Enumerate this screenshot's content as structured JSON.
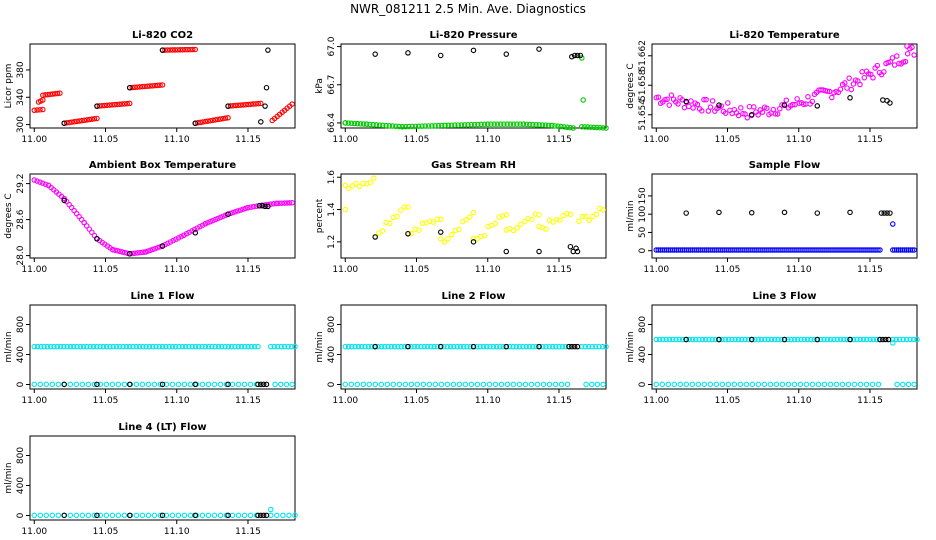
{
  "page": {
    "title": "NWR_081211  2.5 Min. Ave. Diagnostics"
  },
  "colors": {
    "red": "#ff0000",
    "green": "#00cc00",
    "magenta": "#ff00ff",
    "yellow": "#ffff00",
    "blue": "#0000ff",
    "cyan": "#00e5ee",
    "black": "#000000"
  },
  "chart_data": [
    {
      "type": "scatter",
      "title": "Li-820 CO2",
      "ylabel": "Licor ppm",
      "xlim": [
        10.997,
        11.183
      ],
      "ylim": [
        295,
        418
      ],
      "xticks": [
        "11.00",
        "11.05",
        "11.10",
        "11.15"
      ],
      "yticks": [
        "300",
        "340",
        "380"
      ],
      "series": [
        {
          "color": "#ff0000",
          "segments": [
            {
              "x0": 11.0,
              "x1": 11.006,
              "y0": 321,
              "y1": 322
            },
            {
              "x0": 11.003,
              "x1": 11.006,
              "y0": 333,
              "y1": 336
            },
            {
              "x0": 11.006,
              "x1": 11.018,
              "y0": 343,
              "y1": 346
            },
            {
              "x0": 11.021,
              "x1": 11.044,
              "y0": 302,
              "y1": 309
            },
            {
              "x0": 11.044,
              "x1": 11.067,
              "y0": 327,
              "y1": 331
            },
            {
              "x0": 11.067,
              "x1": 11.09,
              "y0": 354,
              "y1": 358
            },
            {
              "x0": 11.09,
              "x1": 11.113,
              "y0": 409,
              "y1": 410
            },
            {
              "x0": 11.113,
              "x1": 11.136,
              "y0": 302,
              "y1": 310
            },
            {
              "x0": 11.136,
              "x1": 11.159,
              "y0": 327,
              "y1": 331
            },
            {
              "x0": 11.167,
              "x1": 11.181,
              "y0": 306,
              "y1": 330
            }
          ]
        },
        {
          "color": "#000000",
          "points": [
            [
              11.021,
              302
            ],
            [
              11.044,
              327
            ],
            [
              11.067,
              354
            ],
            [
              11.09,
              409
            ],
            [
              11.113,
              302
            ],
            [
              11.136,
              327
            ],
            [
              11.159,
              304
            ],
            [
              11.162,
              327
            ],
            [
              11.163,
              354
            ],
            [
              11.164,
              409
            ]
          ]
        }
      ]
    },
    {
      "type": "scatter",
      "title": "Li-820 Pressure",
      "ylabel": "kPa",
      "xlim": [
        10.997,
        11.183
      ],
      "ylim": [
        66.36,
        67.02
      ],
      "xticks": [
        "11.00",
        "11.05",
        "11.10",
        "11.15"
      ],
      "yticks": [
        "66.4",
        "66.7",
        "67.0"
      ],
      "series": [
        {
          "color": "#00cc00",
          "line": [
            [
              11.0,
              66.4
            ],
            [
              11.015,
              66.39
            ],
            [
              11.04,
              66.37
            ],
            [
              11.07,
              66.38
            ],
            [
              11.1,
              66.39
            ],
            [
              11.125,
              66.39
            ],
            [
              11.145,
              66.38
            ],
            [
              11.16,
              66.36
            ]
          ],
          "line2": [
            [
              11.166,
              66.37
            ],
            [
              11.183,
              66.36
            ]
          ],
          "points": [
            [
              11.0,
              66.4
            ],
            [
              11.167,
              66.58
            ],
            [
              11.166,
              66.91
            ]
          ]
        },
        {
          "color": "#000000",
          "points": [
            [
              11.021,
              66.94
            ],
            [
              11.044,
              66.95
            ],
            [
              11.067,
              66.93
            ],
            [
              11.09,
              66.97
            ],
            [
              11.113,
              66.94
            ],
            [
              11.136,
              66.98
            ],
            [
              11.159,
              66.92
            ],
            [
              11.161,
              66.93
            ],
            [
              11.163,
              66.93
            ],
            [
              11.165,
              66.93
            ]
          ]
        }
      ]
    },
    {
      "type": "scatter",
      "title": "Li-820 Temperature",
      "ylabel": "degrees C",
      "xlim": [
        10.997,
        11.183
      ],
      "ylim": [
        51.6522,
        51.6636
      ],
      "xticks": [
        "11.00",
        "11.05",
        "11.10",
        "11.15"
      ],
      "yticks": [
        "51.654",
        "51.658",
        "51.662"
      ],
      "series": [
        {
          "color": "#ff00ff",
          "scatter": {
            "n": 120,
            "xa": 11.0,
            "xb": 11.181,
            "min_start": 51.6558,
            "min_mid": 51.6538,
            "end": 51.6622,
            "spread": 0.0022
          },
          "points": [
            [
              11.176,
              51.6633
            ]
          ]
        },
        {
          "color": "#000000",
          "points": [
            [
              11.021,
              51.6558
            ],
            [
              11.044,
              51.6553
            ],
            [
              11.067,
              51.654
            ],
            [
              11.09,
              51.6553
            ],
            [
              11.113,
              51.6552
            ],
            [
              11.136,
              51.6563
            ],
            [
              11.159,
              51.656
            ],
            [
              11.162,
              51.6559
            ],
            [
              11.164,
              51.6556
            ]
          ]
        }
      ]
    },
    {
      "type": "scatter",
      "title": "Ambient Box Temperature",
      "ylabel": "degrees C",
      "xlim": [
        10.997,
        11.183
      ],
      "ylim": [
        27.96,
        29.36
      ],
      "xticks": [
        "11.00",
        "11.05",
        "11.10",
        "11.15"
      ],
      "yticks": [
        "28.0",
        "28.6",
        "29.2"
      ],
      "series": [
        {
          "color": "#ff00ff",
          "curve": [
            [
              11.0,
              29.26
            ],
            [
              11.01,
              29.17
            ],
            [
              11.021,
              28.95
            ],
            [
              11.035,
              28.55
            ],
            [
              11.044,
              28.28
            ],
            [
              11.055,
              28.1
            ],
            [
              11.067,
              28.03
            ],
            [
              11.078,
              28.06
            ],
            [
              11.09,
              28.16
            ],
            [
              11.105,
              28.34
            ],
            [
              11.12,
              28.53
            ],
            [
              11.136,
              28.69
            ],
            [
              11.15,
              28.8
            ],
            [
              11.16,
              28.84
            ],
            [
              11.17,
              28.87
            ],
            [
              11.181,
              28.88
            ]
          ]
        },
        {
          "color": "#000000",
          "points": [
            [
              11.021,
              28.92
            ],
            [
              11.044,
              28.28
            ],
            [
              11.067,
              28.03
            ],
            [
              11.09,
              28.16
            ],
            [
              11.113,
              28.38
            ],
            [
              11.136,
              28.69
            ],
            [
              11.158,
              28.83
            ],
            [
              11.16,
              28.83
            ],
            [
              11.162,
              28.82
            ],
            [
              11.164,
              28.82
            ]
          ]
        }
      ]
    },
    {
      "type": "scatter",
      "title": "Gas Stream RH",
      "ylabel": "percent",
      "xlim": [
        10.997,
        11.183
      ],
      "ylim": [
        1.1,
        1.62
      ],
      "xticks": [
        "11.00",
        "11.05",
        "11.10",
        "11.15"
      ],
      "yticks": [
        "1.2",
        "1.4",
        "1.6"
      ],
      "series": [
        {
          "color": "#ffff00",
          "cycles": [
            {
              "x0": 11.0,
              "x1": 11.02,
              "y0": 1.55,
              "y1": 1.58
            },
            {
              "x0": 11.021,
              "x1": 11.044,
              "y0": 1.25,
              "y1": 1.44
            },
            {
              "x0": 11.044,
              "x1": 11.067,
              "y0": 1.24,
              "y1": 1.36
            },
            {
              "x0": 11.067,
              "x1": 11.09,
              "y0": 1.2,
              "y1": 1.38
            },
            {
              "x0": 11.09,
              "x1": 11.113,
              "y0": 1.2,
              "y1": 1.37
            },
            {
              "x0": 11.113,
              "x1": 11.136,
              "y0": 1.25,
              "y1": 1.36
            },
            {
              "x0": 11.136,
              "x1": 11.158,
              "y0": 1.28,
              "y1": 1.37
            },
            {
              "x0": 11.164,
              "x1": 11.181,
              "y0": 1.33,
              "y1": 1.39
            }
          ],
          "points": [
            [
              11.0,
              1.4
            ]
          ]
        },
        {
          "color": "#000000",
          "points": [
            [
              11.021,
              1.23
            ],
            [
              11.044,
              1.25
            ],
            [
              11.067,
              1.26
            ],
            [
              11.09,
              1.2
            ],
            [
              11.113,
              1.14
            ],
            [
              11.136,
              1.14
            ],
            [
              11.158,
              1.17
            ],
            [
              11.16,
              1.14
            ],
            [
              11.162,
              1.16
            ],
            [
              11.163,
              1.14
            ]
          ]
        }
      ]
    },
    {
      "type": "scatter",
      "title": "Sample Flow",
      "ylabel": "ml/min",
      "xlim": [
        10.997,
        11.183
      ],
      "ylim": [
        -20,
        210
      ],
      "xticks": [
        "11.00",
        "11.05",
        "11.10",
        "11.15"
      ],
      "yticks": [
        "0",
        "50",
        "100",
        "150"
      ],
      "series": [
        {
          "color": "#0000ff",
          "band": {
            "y": 2,
            "xa": 11.0,
            "xb": 11.157
          },
          "band2": {
            "y": 2,
            "xa": 11.166,
            "xb": 11.181
          },
          "points": [
            [
              11.166,
              73
            ]
          ]
        },
        {
          "color": "#000000",
          "points": [
            [
              11.021,
              103
            ],
            [
              11.044,
              105
            ],
            [
              11.067,
              104
            ],
            [
              11.09,
              105
            ],
            [
              11.113,
              103
            ],
            [
              11.136,
              105
            ],
            [
              11.158,
              103
            ],
            [
              11.16,
              103
            ],
            [
              11.162,
              103
            ],
            [
              11.164,
              103
            ]
          ]
        }
      ]
    },
    {
      "type": "scatter",
      "title": "Line 1 Flow",
      "ylabel": "ml/min",
      "xlim": [
        10.997,
        11.183
      ],
      "ylim": [
        -60,
        1060
      ],
      "xticks": [
        "11.00",
        "11.05",
        "11.10",
        "11.15"
      ],
      "yticks": [
        "0",
        "400",
        "800"
      ],
      "series": [
        {
          "color": "#00e5ee",
          "hband": {
            "y": 505,
            "xa": 11.0,
            "xb": 11.157
          },
          "hband2": {
            "y": 505,
            "xa": 11.166,
            "xb": 11.183
          },
          "lband": {
            "y": 2,
            "xa": 11.0,
            "xb": 11.156
          },
          "lband2": {
            "y": 2,
            "xa": 11.169,
            "xb": 11.181
          }
        },
        {
          "color": "#000000",
          "points": [
            [
              11.021,
              2
            ],
            [
              11.044,
              2
            ],
            [
              11.067,
              2
            ],
            [
              11.09,
              2
            ],
            [
              11.113,
              2
            ],
            [
              11.136,
              2
            ],
            [
              11.157,
              2
            ],
            [
              11.159,
              2
            ],
            [
              11.161,
              2
            ],
            [
              11.163,
              2
            ]
          ]
        }
      ]
    },
    {
      "type": "scatter",
      "title": "Line 2 Flow",
      "ylabel": "ml/min",
      "xlim": [
        10.997,
        11.183
      ],
      "ylim": [
        -60,
        1060
      ],
      "xticks": [
        "11.00",
        "11.05",
        "11.10",
        "11.15"
      ],
      "yticks": [
        "0",
        "400",
        "800"
      ],
      "series": [
        {
          "color": "#00e5ee",
          "hband": {
            "y": 505,
            "xa": 11.0,
            "xb": 11.157
          },
          "hband2": {
            "y": 505,
            "xa": 11.166,
            "xb": 11.183
          },
          "lband": {
            "y": 2,
            "xa": 11.0,
            "xb": 11.156
          },
          "lband2": {
            "y": 2,
            "xa": 11.169,
            "xb": 11.181
          }
        },
        {
          "color": "#000000",
          "points": [
            [
              11.021,
              505
            ],
            [
              11.044,
              505
            ],
            [
              11.067,
              505
            ],
            [
              11.09,
              505
            ],
            [
              11.113,
              505
            ],
            [
              11.136,
              505
            ],
            [
              11.157,
              505
            ],
            [
              11.159,
              505
            ],
            [
              11.161,
              505
            ],
            [
              11.163,
              505
            ]
          ]
        }
      ]
    },
    {
      "type": "scatter",
      "title": "Line 3 Flow",
      "ylabel": "ml/min",
      "xlim": [
        10.997,
        11.183
      ],
      "ylim": [
        -60,
        1060
      ],
      "xticks": [
        "11.00",
        "11.05",
        "11.10",
        "11.15"
      ],
      "yticks": [
        "0",
        "400",
        "800"
      ],
      "series": [
        {
          "color": "#00e5ee",
          "hband": {
            "y": 600,
            "xa": 11.0,
            "xb": 11.157
          },
          "hband2": {
            "y": 600,
            "xa": 11.166,
            "xb": 11.183
          },
          "lband": {
            "y": 2,
            "xa": 11.0,
            "xb": 11.156
          },
          "lband2": {
            "y": 2,
            "xa": 11.169,
            "xb": 11.181
          },
          "points": [
            [
              11.166,
              555
            ]
          ]
        },
        {
          "color": "#000000",
          "points": [
            [
              11.021,
              600
            ],
            [
              11.044,
              600
            ],
            [
              11.067,
              600
            ],
            [
              11.09,
              600
            ],
            [
              11.113,
              600
            ],
            [
              11.136,
              600
            ],
            [
              11.157,
              600
            ],
            [
              11.159,
              600
            ],
            [
              11.161,
              600
            ],
            [
              11.163,
              600
            ]
          ]
        }
      ]
    },
    {
      "type": "scatter",
      "title": "Line 4 (LT) Flow",
      "ylabel": "ml/min",
      "xlim": [
        10.997,
        11.183
      ],
      "ylim": [
        -60,
        1060
      ],
      "xticks": [
        "11.00",
        "11.05",
        "11.10",
        "11.15"
      ],
      "yticks": [
        "0",
        "400",
        "800"
      ],
      "series": [
        {
          "color": "#00e5ee",
          "lband": {
            "y": 2,
            "xa": 11.0,
            "xb": 11.156
          },
          "lband2": {
            "y": 2,
            "xa": 11.166,
            "xb": 11.183
          },
          "points": [
            [
              11.166,
              80
            ]
          ]
        },
        {
          "color": "#000000",
          "points": [
            [
              11.021,
              2
            ],
            [
              11.044,
              2
            ],
            [
              11.067,
              2
            ],
            [
              11.09,
              2
            ],
            [
              11.113,
              2
            ],
            [
              11.136,
              2
            ],
            [
              11.157,
              2
            ],
            [
              11.159,
              2
            ],
            [
              11.161,
              2
            ],
            [
              11.163,
              2
            ]
          ]
        }
      ]
    }
  ]
}
